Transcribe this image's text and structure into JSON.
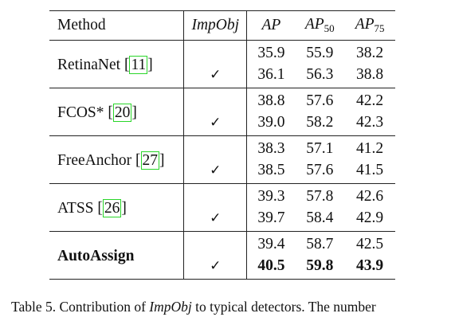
{
  "table": {
    "header": {
      "method": "Method",
      "impobj": "ImpObj",
      "ap": "AP",
      "ap50_base": "AP",
      "ap50_sub": "50",
      "ap75_base": "AP",
      "ap75_sub": "75"
    },
    "groups": [
      {
        "method": "RetinaNet",
        "cite": "11",
        "rows": [
          {
            "impobj": "",
            "ap": "35.9",
            "ap50": "55.9",
            "ap75": "38.2"
          },
          {
            "impobj": "✓",
            "ap": "36.1",
            "ap50": "56.3",
            "ap75": "38.8"
          }
        ]
      },
      {
        "method": "FCOS*",
        "cite": "20",
        "rows": [
          {
            "impobj": "",
            "ap": "38.8",
            "ap50": "57.6",
            "ap75": "42.2"
          },
          {
            "impobj": "✓",
            "ap": "39.0",
            "ap50": "58.2",
            "ap75": "42.3"
          }
        ]
      },
      {
        "method": "FreeAnchor",
        "cite": "27",
        "rows": [
          {
            "impobj": "",
            "ap": "38.3",
            "ap50": "57.1",
            "ap75": "41.2"
          },
          {
            "impobj": "✓",
            "ap": "38.5",
            "ap50": "57.6",
            "ap75": "41.5"
          }
        ]
      },
      {
        "method": "ATSS",
        "cite": "26",
        "rows": [
          {
            "impobj": "",
            "ap": "39.3",
            "ap50": "57.8",
            "ap75": "42.6"
          },
          {
            "impobj": "✓",
            "ap": "39.7",
            "ap50": "58.4",
            "ap75": "42.9"
          }
        ]
      },
      {
        "method": "AutoAssign",
        "cite": "",
        "bold": true,
        "rows": [
          {
            "impobj": "",
            "ap": "39.4",
            "ap50": "58.7",
            "ap75": "42.5"
          },
          {
            "impobj": "✓",
            "ap": "40.5",
            "ap50": "59.8",
            "ap75": "43.9"
          }
        ]
      }
    ]
  },
  "caption": {
    "prefix": "Table 5. Contribution of ",
    "emph": "ImpObj",
    "suffix": " to typical detectors. The number"
  }
}
